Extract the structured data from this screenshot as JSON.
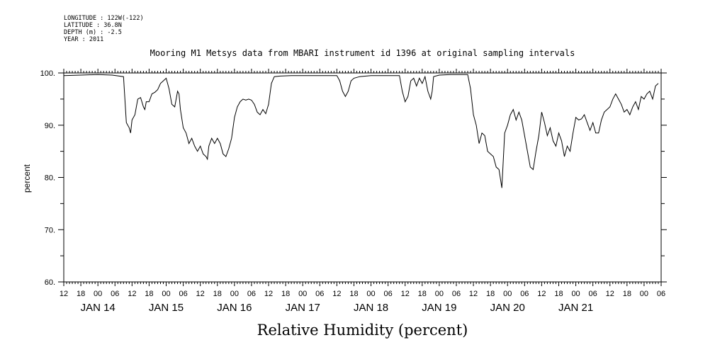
{
  "meta": {
    "longitude": "LONGITUDE : 122W(-122)",
    "latitude": "LATITUDE : 36.8N",
    "depth": "DEPTH (m) : -2.5",
    "year": "YEAR : 2011"
  },
  "chart_data": {
    "type": "line",
    "title": "Mooring M1 Metsys data from MBARI instrument id 1396 at original sampling intervals",
    "xlabel": "Relative Humidity (percent)",
    "ylabel": "percent",
    "ylim": [
      60,
      100
    ],
    "yticks": [
      "60.",
      "70.",
      "80.",
      "90.",
      "100."
    ],
    "xlim_hours": [
      -12,
      198
    ],
    "hour_tick_labels": [
      "12",
      "18",
      "00",
      "06",
      "12",
      "18",
      "00",
      "06",
      "12",
      "18",
      "00",
      "06",
      "12",
      "18",
      "00",
      "06",
      "12",
      "18",
      "00",
      "06",
      "12",
      "18",
      "00",
      "06",
      "12",
      "18",
      "00",
      "06",
      "12",
      "18",
      "00",
      "06",
      "12",
      "18",
      "00",
      "06"
    ],
    "day_labels": [
      "JAN 14",
      "JAN 15",
      "JAN 16",
      "JAN 17",
      "JAN 18",
      "JAN 19",
      "JAN 20",
      "JAN 21"
    ],
    "day_label_hours": [
      0,
      24,
      48,
      72,
      96,
      120,
      144,
      168
    ],
    "grid": false,
    "series": [
      {
        "color": "#000000",
        "points": [
          [
            -12,
            99.5
          ],
          [
            -6,
            99.6
          ],
          [
            0,
            99.7
          ],
          [
            5,
            99.6
          ],
          [
            9,
            99.3
          ],
          [
            10,
            90.5
          ],
          [
            11,
            89.5
          ],
          [
            11.5,
            88.5
          ],
          [
            12,
            91
          ],
          [
            13,
            92
          ],
          [
            14,
            95
          ],
          [
            15,
            95.3
          ],
          [
            16,
            93.5
          ],
          [
            16.5,
            93
          ],
          [
            17,
            94.5
          ],
          [
            18,
            94.5
          ],
          [
            19,
            96
          ],
          [
            20,
            96.3
          ],
          [
            21,
            96.8
          ],
          [
            22,
            98
          ],
          [
            23,
            98.5
          ],
          [
            24,
            99
          ],
          [
            25,
            97
          ],
          [
            26,
            94
          ],
          [
            27,
            93.5
          ],
          [
            28,
            96.5
          ],
          [
            28.5,
            96
          ],
          [
            29,
            93
          ],
          [
            30,
            89.5
          ],
          [
            31,
            88.5
          ],
          [
            32,
            86.5
          ],
          [
            33,
            87.5
          ],
          [
            34,
            86
          ],
          [
            35,
            85
          ],
          [
            36,
            86
          ],
          [
            37,
            84.5
          ],
          [
            38,
            84
          ],
          [
            38.5,
            83.5
          ],
          [
            39,
            86
          ],
          [
            40,
            87.5
          ],
          [
            41,
            86.5
          ],
          [
            42,
            87.5
          ],
          [
            43,
            86.5
          ],
          [
            44,
            84.5
          ],
          [
            45,
            84
          ],
          [
            46,
            85.5
          ],
          [
            47,
            87.5
          ],
          [
            48,
            91.5
          ],
          [
            49,
            93.5
          ],
          [
            50,
            94.5
          ],
          [
            51,
            95
          ],
          [
            52,
            94.8
          ],
          [
            53,
            95
          ],
          [
            54,
            94.8
          ],
          [
            55,
            94
          ],
          [
            56,
            92.5
          ],
          [
            57,
            92
          ],
          [
            58,
            93
          ],
          [
            59,
            92.2
          ],
          [
            60,
            94
          ],
          [
            61,
            98
          ],
          [
            62,
            99.3
          ],
          [
            64,
            99.4
          ],
          [
            68,
            99.5
          ],
          [
            72,
            99.5
          ],
          [
            76,
            99.5
          ],
          [
            82,
            99.5
          ],
          [
            84,
            99.5
          ],
          [
            85,
            98.5
          ],
          [
            86,
            96.5
          ],
          [
            87,
            95.5
          ],
          [
            88,
            96.5
          ],
          [
            89,
            98.5
          ],
          [
            90,
            99
          ],
          [
            92,
            99.3
          ],
          [
            96,
            99.5
          ],
          [
            100,
            99.5
          ],
          [
            104,
            99.5
          ],
          [
            106,
            99.5
          ],
          [
            107,
            96.5
          ],
          [
            108,
            94.5
          ],
          [
            109,
            95.5
          ],
          [
            110,
            98.5
          ],
          [
            111,
            99
          ],
          [
            112,
            97.5
          ],
          [
            113,
            99
          ],
          [
            114,
            98
          ],
          [
            115,
            99.3
          ],
          [
            116,
            96.5
          ],
          [
            117,
            95
          ],
          [
            117.5,
            96.5
          ],
          [
            118,
            99.3
          ],
          [
            120,
            99.6
          ],
          [
            124,
            99.7
          ],
          [
            130,
            99.7
          ],
          [
            131,
            97
          ],
          [
            132,
            92
          ],
          [
            133,
            90
          ],
          [
            134,
            86.5
          ],
          [
            135,
            88.5
          ],
          [
            136,
            88
          ],
          [
            137,
            85
          ],
          [
            138,
            84.5
          ],
          [
            139,
            84
          ],
          [
            140,
            82
          ],
          [
            141,
            81.5
          ],
          [
            142,
            78
          ],
          [
            143,
            88.5
          ],
          [
            144,
            90
          ],
          [
            145,
            92
          ],
          [
            146,
            93
          ],
          [
            147,
            91
          ],
          [
            148,
            92.5
          ],
          [
            149,
            91
          ],
          [
            150,
            88
          ],
          [
            151,
            85
          ],
          [
            152,
            82
          ],
          [
            153,
            81.5
          ],
          [
            154,
            85
          ],
          [
            155,
            88
          ],
          [
            156,
            92.5
          ],
          [
            157,
            90.5
          ],
          [
            158,
            88
          ],
          [
            159,
            89.5
          ],
          [
            160,
            87
          ],
          [
            161,
            86
          ],
          [
            162,
            88.5
          ],
          [
            163,
            87
          ],
          [
            164,
            84
          ],
          [
            165,
            86
          ],
          [
            166,
            85
          ],
          [
            167,
            88.5
          ],
          [
            168,
            91.5
          ],
          [
            169,
            91
          ],
          [
            170,
            91.2
          ],
          [
            171,
            92
          ],
          [
            172,
            90.5
          ],
          [
            173,
            89
          ],
          [
            174,
            90.5
          ],
          [
            175,
            88.5
          ],
          [
            176,
            88.5
          ],
          [
            177,
            91
          ],
          [
            178,
            92.5
          ],
          [
            179,
            93
          ],
          [
            180,
            93.5
          ],
          [
            181,
            95
          ],
          [
            182,
            96
          ],
          [
            183,
            95
          ],
          [
            184,
            94
          ],
          [
            185,
            92.5
          ],
          [
            186,
            93
          ],
          [
            187,
            92
          ],
          [
            188,
            93.5
          ],
          [
            189,
            94.5
          ],
          [
            190,
            93
          ],
          [
            191,
            95.5
          ],
          [
            192,
            95
          ],
          [
            193,
            96
          ],
          [
            194,
            96.5
          ],
          [
            195,
            95
          ],
          [
            196,
            97.5
          ],
          [
            197,
            98
          ]
        ]
      }
    ]
  }
}
